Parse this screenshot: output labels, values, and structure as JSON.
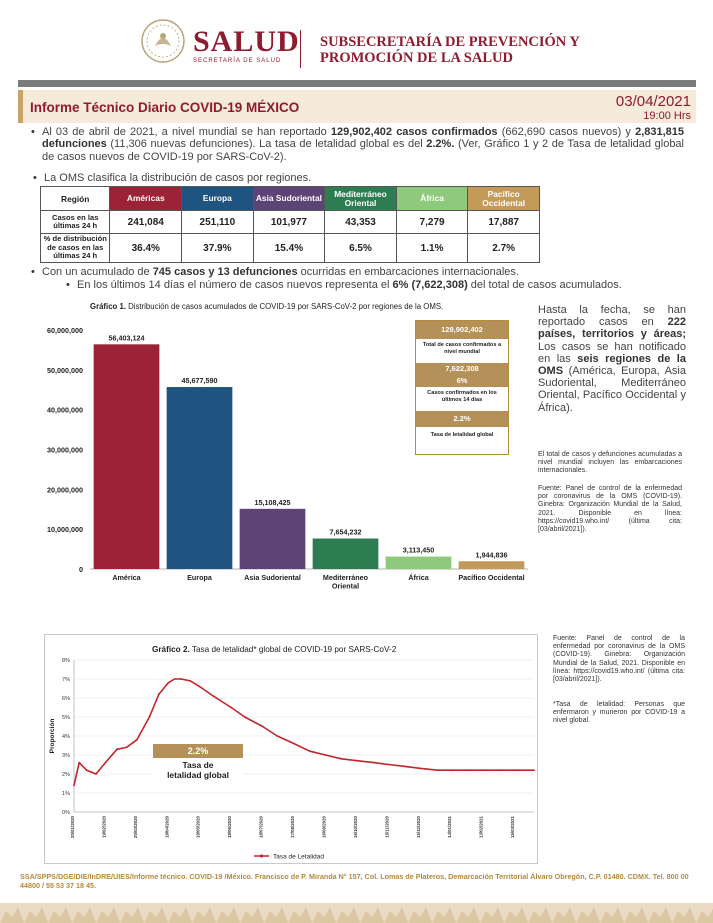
{
  "header": {
    "logo_word": "SALUD",
    "logo_sub": "SECRETARÍA DE SALUD",
    "subsecretaria": "SUBSECRETARÍA DE PREVENCIÓN Y PROMOCIÓN DE LA SALUD"
  },
  "report": {
    "title": "Informe Técnico Diario COVID-19 MÉXICO",
    "date": "03/04/2021",
    "time": "19:00 Hrs"
  },
  "bullets": {
    "b1_p1": "Al 03 de abril de 2021, a nivel mundial se han reportado ",
    "b1_cases": "129,902,402 casos confirmados",
    "b1_p2": " (662,690 casos nuevos) y ",
    "b1_deaths": "2,831,815 defunciones",
    "b1_p3": " (11,306 nuevas defunciones).  La tasa de letalidad global es del ",
    "b1_rate": "2.2%.",
    "b1_p4": " (Ver, Gráfico 1 y 2 de Tasa de letalidad global de casos nuevos de COVID-19 por SARS-CoV-2).",
    "b2": "La OMS clasifica la distribución de casos por regiones.",
    "b3_p1": "Con un acumulado de ",
    "b3_bold": "745 casos y 13 defunciones",
    "b3_p2": " ocurridas en embarcaciones internacionales.",
    "b4_p1": "En los últimos 14 días el número de casos nuevos representa el ",
    "b4_bold": "6% (7,622,308)",
    "b4_p2": " del total de casos acumulados."
  },
  "oms_table": {
    "header_label": "Región",
    "row1_label": "Casos en las últimas 24 h",
    "row2_label": "% de distribución de casos en las últimas 24 h",
    "regions": [
      {
        "name": "Américas",
        "color": "#9b2335",
        "text_color": "#ffffff",
        "cases": "241,084",
        "pct": "36.4%"
      },
      {
        "name": "Europa",
        "color": "#1f5480",
        "text_color": "#ffffff",
        "cases": "251,110",
        "pct": "37.9%"
      },
      {
        "name": "Asia Sudoriental",
        "color": "#5d4476",
        "text_color": "#ffffff",
        "cases": "101,977",
        "pct": "15.4%"
      },
      {
        "name": "Mediterráneo Oriental",
        "color": "#2e7d52",
        "text_color": "#ffffff",
        "cases": "43,353",
        "pct": "6.5%"
      },
      {
        "name": "África",
        "color": "#8ec97d",
        "text_color": "#ffffff",
        "cases": "7,279",
        "pct": "1.1%"
      },
      {
        "name": "Pacífico Occidental",
        "color": "#c49a5a",
        "text_color": "#ffffff",
        "cases": "17,887",
        "pct": "2.7%"
      }
    ]
  },
  "chart1": {
    "title_bold": "Gráfico 1.",
    "title_rest": " Distribución de casos acumulados de COVID-19 por SARS-CoV-2 por regiones de la OMS.",
    "box": {
      "total": "129,902,402",
      "total_label": "Total de casos confirmados a nivel mundial",
      "last14": "7,622,308",
      "last14_pct": "6%",
      "last14_label": "Casos confirmados en los últimos 14 días",
      "rate": "2.2%",
      "rate_label": "Tasa de letalidad global"
    }
  },
  "side1": {
    "p1": "Hasta la fecha, se han reportado casos en ",
    "p1_bold": "222 países, territorios y áreas;",
    "p2": " Los casos se han notificado en las ",
    "p2_bold": "seis regiones de la OMS",
    "p3": " (América, Europa, Asia Sudoriental, Mediterráneo Oriental, Pacífico Occidental y África).",
    "note1": "El total de casos y defunciones acumuladas a nivel mundial incluyen las embarcaciones internacionales.",
    "note2": "Fuente: Panel de control de la enfermedad por coronavirus de la OMS (COVID-19). Ginebra: Organización Mundial de la Salud, 2021. Disponible en línea: https://covid19.who.int/ (última cita: [03/abril/2021])."
  },
  "chart2": {
    "title_bold": "Gráfico 2.",
    "title_rest": " Tasa de letalidad* global de COVID-19 por SARS-CoV-2",
    "box_value": "2.2%",
    "box_label": "Tasa de letalidad global",
    "legend": "Tasa de Letalidad",
    "line_color": "#c0262c"
  },
  "side2": {
    "note1": "Fuente: Panel de control de la enfermedad por coronavirus de la OMS (COVID-19). Ginebra: Organización Mundial de la Salud, 2021. Disponible en línea: https://covid19.who.int/ (última cita: [03/abril/2021]).",
    "note2": "*Tasa de letalidad: Personas que enfermaron y murieron por COVID-19 a nivel global."
  },
  "footer": {
    "text": "SSA/SPPS/DGE/DIE/InDRE/UIES/Informe técnico. COVID-19 /México. Francisco de P. Miranda N° 157, Col. Lomas de Plateros, Demarcación Territorial Álvaro Obregón, C.P. 01480. CDMX. Tel. 800 00 44800 / 55 53 37 18 45."
  },
  "chart_data": [
    {
      "type": "bar",
      "title": "Distribución de casos acumulados de COVID-19 por SARS-CoV-2 por regiones de la OMS.",
      "categories": [
        "América",
        "Europa",
        "Asia Sudoriental",
        "Mediterráneo Oriental",
        "África",
        "Pacífico Occidental"
      ],
      "values": [
        56403124,
        45677590,
        15108425,
        7654232,
        3113450,
        1944836
      ],
      "value_labels": [
        "56,403,124",
        "45,677,590",
        "15,108,425",
        "7,654,232",
        "3,113,450",
        "1,944,836"
      ],
      "colors": [
        "#9b2335",
        "#1f5480",
        "#5d4476",
        "#2e7d52",
        "#8ec97d",
        "#c49a5a"
      ],
      "yticks": [
        "0",
        "10,000,000",
        "20,000,000",
        "30,000,000",
        "40,000,000",
        "50,000,000",
        "60,000,000"
      ],
      "ylim": [
        0,
        60000000
      ],
      "xlabel": "",
      "ylabel": ""
    },
    {
      "type": "line",
      "title": "Tasa de letalidad* global de COVID-19 por SARS-CoV-2",
      "ylabel": "Proporción",
      "xlabel": "",
      "ylim": [
        0,
        8
      ],
      "yticks": [
        "0%",
        "1%",
        "2%",
        "3%",
        "4%",
        "5%",
        "6%",
        "7%",
        "8%"
      ],
      "xticks": [
        "20/01/2020",
        "19/02/2020",
        "20/03/2020",
        "19/04/2020",
        "19/05/2020",
        "18/06/2020",
        "18/07/2020",
        "17/08/2020",
        "16/09/2020",
        "16/10/2020",
        "15/11/2020",
        "15/12/2020",
        "14/01/2021",
        "13/02/2021",
        "15/03/2021"
      ],
      "series": [
        {
          "name": "Tasa de Letalidad",
          "x": [
            "20/01/2020",
            "25/01/2020",
            "01/02/2020",
            "10/02/2020",
            "19/02/2020",
            "01/03/2020",
            "10/03/2020",
            "20/03/2020",
            "01/04/2020",
            "10/04/2020",
            "19/04/2020",
            "25/04/2020",
            "01/05/2020",
            "10/05/2020",
            "19/05/2020",
            "01/06/2020",
            "18/06/2020",
            "01/07/2020",
            "18/07/2020",
            "01/08/2020",
            "17/08/2020",
            "01/09/2020",
            "16/09/2020",
            "01/10/2020",
            "16/10/2020",
            "01/11/2020",
            "15/11/2020",
            "01/12/2020",
            "15/12/2020",
            "01/01/2021",
            "14/01/2021",
            "01/02/2021",
            "13/02/2021",
            "01/03/2021",
            "15/03/2021",
            "03/04/2021"
          ],
          "values": [
            1.4,
            2.6,
            2.2,
            2.0,
            2.6,
            3.3,
            3.4,
            3.8,
            5.0,
            6.2,
            6.8,
            7.0,
            7.0,
            6.9,
            6.6,
            6.1,
            5.5,
            5.0,
            4.5,
            4.0,
            3.6,
            3.2,
            3.0,
            2.8,
            2.7,
            2.6,
            2.5,
            2.4,
            2.3,
            2.2,
            2.2,
            2.2,
            2.2,
            2.2,
            2.2,
            2.2
          ]
        }
      ]
    }
  ]
}
